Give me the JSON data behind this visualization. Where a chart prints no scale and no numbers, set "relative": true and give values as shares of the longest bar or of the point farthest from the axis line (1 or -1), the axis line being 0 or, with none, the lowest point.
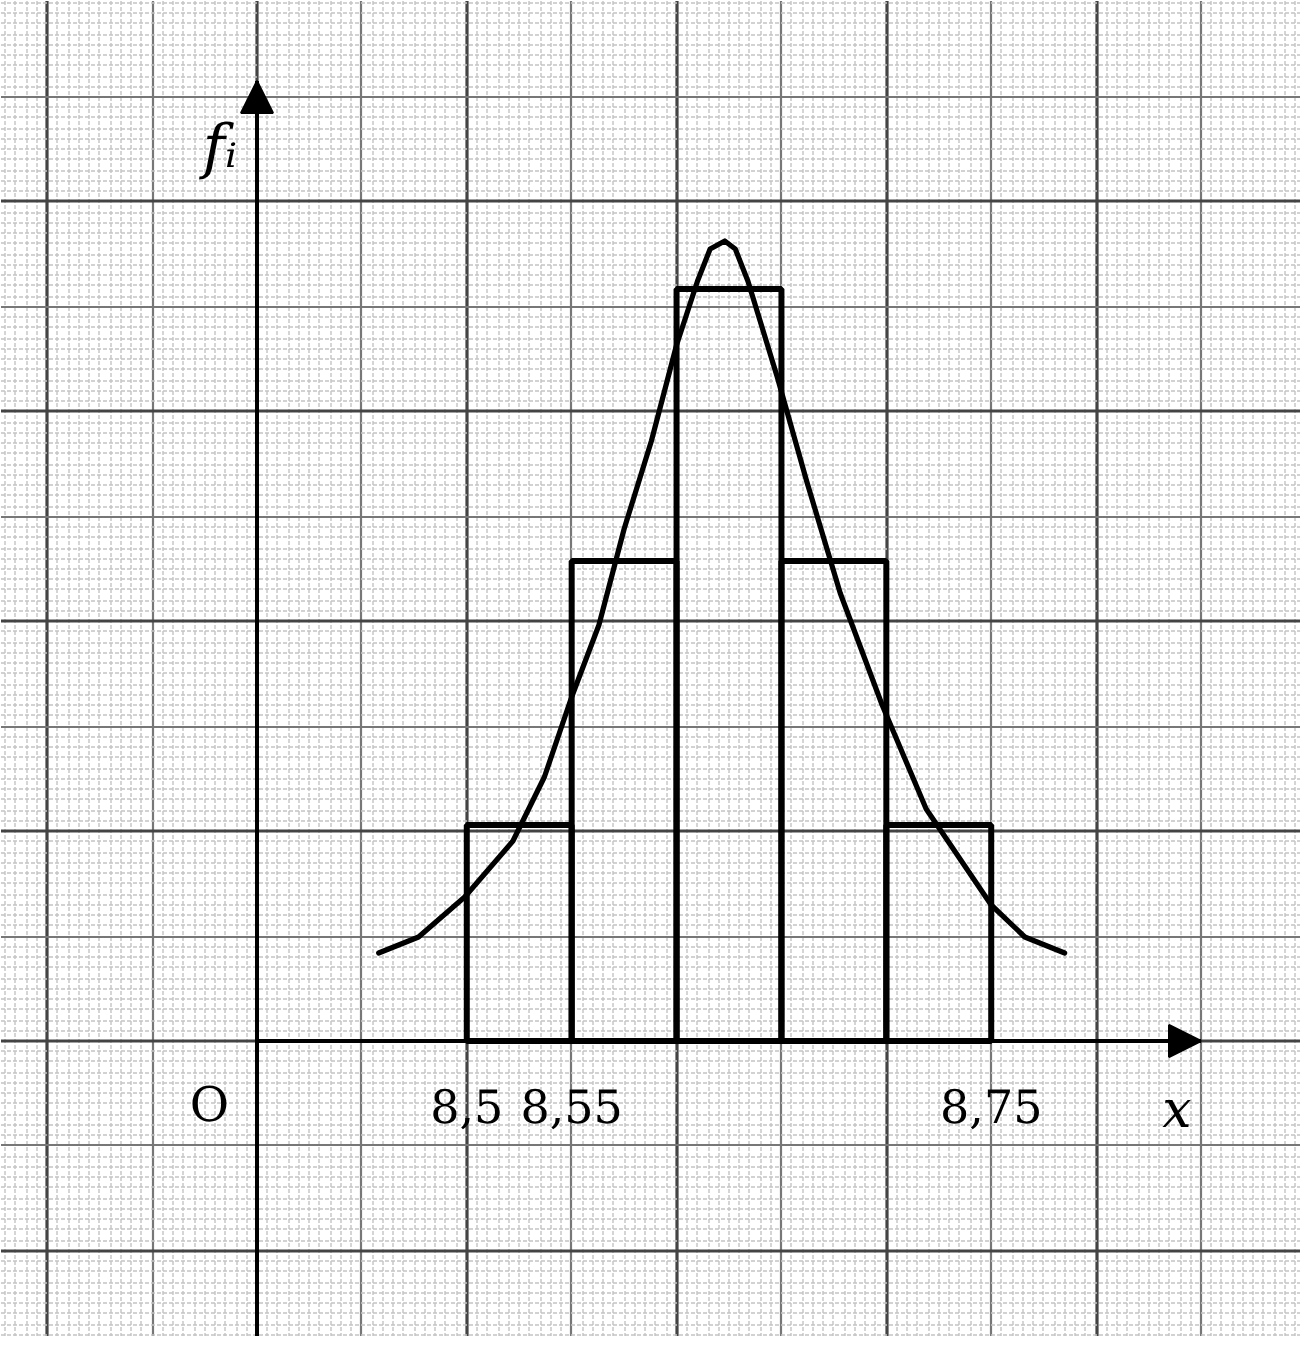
{
  "chart_data": {
    "type": "histogram",
    "bins": [
      8.5,
      8.55,
      8.6,
      8.65,
      8.7,
      8.75
    ],
    "values": [
      0.27,
      0.6,
      0.94,
      0.6,
      0.27
    ],
    "color": "#000000",
    "xlabel": "x",
    "ylabel": "fᵢ",
    "annotations": [
      "O"
    ],
    "relative": true,
    "grid": true,
    "xlim": [
      8.4,
      8.85
    ],
    "xticks": [
      {
        "value": 8.5,
        "label": "8,5"
      },
      {
        "value": 8.55,
        "label": "8,55"
      },
      {
        "value": 8.75,
        "label": "8,75"
      }
    ],
    "series": [
      {
        "type": "line",
        "color": "#000000",
        "x": [
          8.458,
          8.477,
          8.499,
          8.522,
          8.537,
          8.55,
          8.563,
          8.575,
          8.588,
          8.6,
          8.61,
          8.616,
          8.623,
          8.628,
          8.634,
          8.648,
          8.662,
          8.678,
          8.698,
          8.719,
          8.75,
          8.766,
          8.785
        ],
        "values": [
          0.11,
          0.13,
          0.18,
          0.25,
          0.33,
          0.43,
          0.52,
          0.64,
          0.75,
          0.87,
          0.95,
          0.99,
          1,
          0.99,
          0.95,
          0.83,
          0.7,
          0.56,
          0.42,
          0.29,
          0.17,
          0.13,
          0.11
        ]
      }
    ]
  }
}
